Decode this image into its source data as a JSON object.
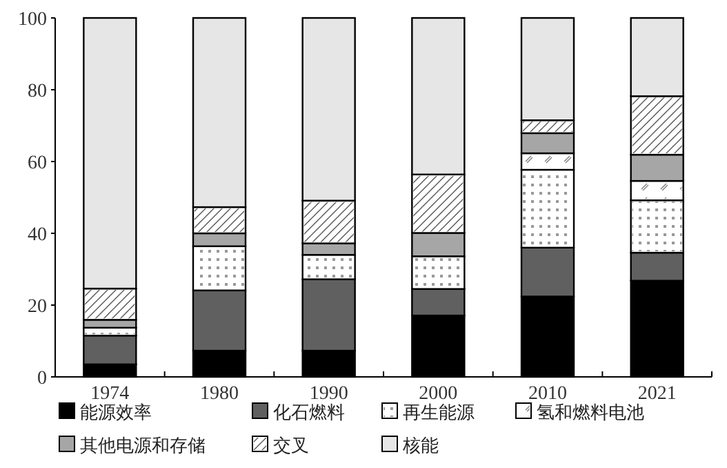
{
  "chart_data": {
    "type": "bar",
    "stacked": true,
    "categories": [
      "1974",
      "1980",
      "1990",
      "2000",
      "2010",
      "2021"
    ],
    "ylim": [
      0,
      100
    ],
    "yticks": [
      0,
      20,
      40,
      60,
      80,
      100
    ],
    "legend": "bottom",
    "grid": false,
    "series": [
      {
        "name": "能源效率",
        "color": "#000000",
        "values": [
          3.5,
          7.3,
          7.3,
          17.1,
          22.4,
          26.8
        ]
      },
      {
        "name": "化石燃料",
        "color": "#606060",
        "values": [
          8.0,
          16.8,
          19.9,
          7.4,
          13.6,
          7.8
        ]
      },
      {
        "name": "再生能源",
        "color": "#ffffff",
        "values": [
          2.2,
          12.3,
          6.8,
          9.1,
          21.7,
          14.6
        ]
      },
      {
        "name": "氢和燃料电池",
        "color": "#ffffff",
        "values": [
          0,
          0,
          0,
          0,
          4.6,
          5.4
        ]
      },
      {
        "name": "其他电源和存储",
        "color": "#a6a6a6",
        "values": [
          2.2,
          3.6,
          3.2,
          6.5,
          5.6,
          7.3
        ]
      },
      {
        "name": "交叉",
        "color": "#ffffff",
        "values": [
          8.7,
          7.3,
          11.9,
          16.3,
          3.6,
          16.3
        ]
      },
      {
        "name": "核能",
        "color": "#e6e6e6",
        "values": [
          75.4,
          52.7,
          50.9,
          43.6,
          28.5,
          21.8
        ]
      }
    ]
  }
}
